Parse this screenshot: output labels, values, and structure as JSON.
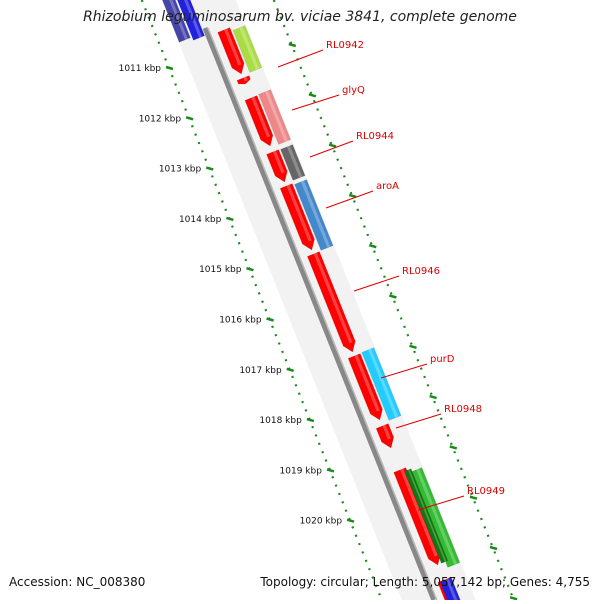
{
  "title": "Rhizobium leguminosarum bv. viciae 3841, complete genome",
  "accession": "Accession: NC_008380",
  "summary": "Topology: circular; Length: 5,057,142 bp; Genes: 4,755",
  "colors": {
    "backbone": "#888888",
    "tick": "#1a8a1a",
    "feature_label": "#dd0000",
    "cds": "#ff0000"
  },
  "scale_labels": [
    "1011 kbp",
    "1012 kbp",
    "1013 kbp",
    "1014 kbp",
    "1015 kbp",
    "1016 kbp",
    "1017 kbp",
    "1018 kbp",
    "1019 kbp",
    "1020 kbp"
  ],
  "gene_labels": [
    "RL0942",
    "glyQ",
    "RL0944",
    "aroA",
    "RL0946",
    "purD",
    "RL0948",
    "RL0949"
  ],
  "gene_colors": [
    "#aadd44",
    "#ee8888",
    "#666666",
    "#4488cc",
    "#ff0000",
    "#22ccff",
    "#ff0000",
    "#33bb33"
  ]
}
